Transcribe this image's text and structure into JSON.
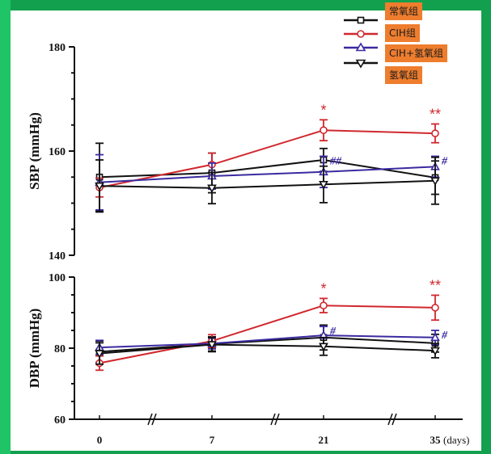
{
  "colors": {
    "black": "#111111",
    "red": "#d0282e",
    "blue": "#3a2aa0",
    "legend_bg": "#ee7d2e"
  },
  "legend": [
    {
      "label": "常氧组",
      "color": "#111111",
      "marker": "square"
    },
    {
      "label": "CIH组",
      "color": "#d0282e",
      "marker": "circle"
    },
    {
      "label": "CIH+氢氧组",
      "color": "#3a2aa0",
      "marker": "triangle-up"
    },
    {
      "label": "氢氧组",
      "color": "#111111",
      "marker": "triangle-down"
    }
  ],
  "chart_data": [
    {
      "type": "line",
      "title": "",
      "xlabel": "(days)",
      "ylabel": "SBP (mmHg)",
      "x": [
        0,
        7,
        21,
        35
      ],
      "x_tick_labels": [
        "0",
        "7",
        "21",
        "35"
      ],
      "axis_breaks": true,
      "ylim": [
        140,
        180
      ],
      "y_ticks": [
        140,
        160,
        180
      ],
      "series": [
        {
          "name": "常氧组",
          "values": [
            155.0,
            155.8,
            158.3,
            154.9
          ],
          "err": [
            6.5,
            3.8,
            2.2,
            3.2
          ]
        },
        {
          "name": "CIH组",
          "values": [
            153.0,
            157.4,
            164.0,
            163.4
          ],
          "err": [
            1.8,
            2.2,
            2.0,
            1.8
          ]
        },
        {
          "name": "CIH+氢氧组",
          "values": [
            154.0,
            155.2,
            156.0,
            157.0
          ],
          "err": [
            5.3,
            2.5,
            3.0,
            2.0
          ]
        },
        {
          "name": "氢氧组",
          "values": [
            153.3,
            152.9,
            153.6,
            154.3
          ],
          "err": [
            5.0,
            3.0,
            3.5,
            4.5
          ]
        }
      ],
      "annotations": [
        {
          "x": 21,
          "text": "*",
          "color": "#d0282e",
          "series": "CIH组"
        },
        {
          "x": 35,
          "text": "**",
          "color": "#d0282e",
          "series": "CIH组"
        },
        {
          "x": 21,
          "text": "##",
          "color": "#3a2aa0",
          "series": "CIH+氢氧组"
        },
        {
          "x": 35,
          "text": "#",
          "color": "#3a2aa0",
          "series": "CIH+氢氧组"
        }
      ]
    },
    {
      "type": "line",
      "title": "",
      "xlabel": "(days)",
      "ylabel": "DBP (mmHg)",
      "x": [
        0,
        7,
        21,
        35
      ],
      "x_tick_labels": [
        "0",
        "7",
        "21",
        "35"
      ],
      "axis_breaks": true,
      "ylim": [
        60,
        100
      ],
      "y_ticks": [
        60,
        80,
        100
      ],
      "series": [
        {
          "name": "常氧组",
          "values": [
            79.0,
            81.2,
            83.0,
            81.4
          ],
          "err": [
            3.0,
            2.0,
            3.5,
            2.5
          ]
        },
        {
          "name": "CIH组",
          "values": [
            75.8,
            82.0,
            92.0,
            91.4
          ],
          "err": [
            2.0,
            1.8,
            2.0,
            3.5
          ]
        },
        {
          "name": "CIH+氢氧组",
          "values": [
            80.2,
            81.3,
            83.6,
            83.0
          ],
          "err": [
            2.0,
            1.5,
            2.5,
            2.0
          ]
        },
        {
          "name": "氢氧组",
          "values": [
            78.5,
            81.0,
            80.5,
            79.3
          ],
          "err": [
            3.0,
            2.0,
            2.5,
            2.0
          ]
        }
      ],
      "annotations": [
        {
          "x": 21,
          "text": "*",
          "color": "#d0282e",
          "series": "CIH组"
        },
        {
          "x": 35,
          "text": "**",
          "color": "#d0282e",
          "series": "CIH组"
        },
        {
          "x": 21,
          "text": "#",
          "color": "#3a2aa0",
          "series": "CIH+氢氧组"
        },
        {
          "x": 35,
          "text": "#",
          "color": "#3a2aa0",
          "series": "CIH+氢氧组"
        }
      ]
    }
  ]
}
